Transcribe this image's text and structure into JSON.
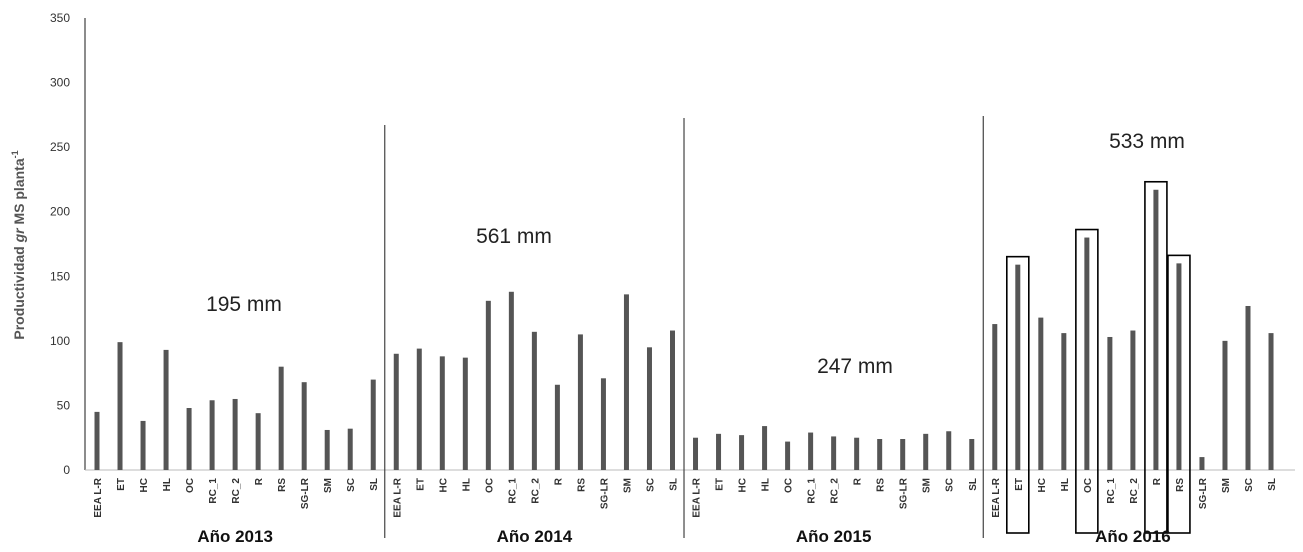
{
  "chart_data": {
    "type": "bar",
    "ylabel": "Productividad gr MS planta⁻¹",
    "ylabel_parts": [
      "Productividad ",
      "gr",
      " MS planta",
      "-1"
    ],
    "ylim": [
      0,
      350
    ],
    "yticks": [
      0,
      50,
      100,
      150,
      200,
      250,
      300,
      350
    ],
    "bar_color": "#555555",
    "highlight_color": "#000000",
    "groups": [
      {
        "label": "Año 2013",
        "rainfall": "195 mm",
        "categories": [
          "EEA L-R",
          "ET",
          "HC",
          "HL",
          "OC",
          "RC_1",
          "RC_2",
          "R",
          "RS",
          "SG-LR",
          "SM",
          "SC",
          "SL"
        ],
        "values": [
          45,
          99,
          38,
          93,
          48,
          54,
          55,
          44,
          80,
          68,
          31,
          32,
          70
        ],
        "highlighted": []
      },
      {
        "label": "Año 2014",
        "rainfall": "561 mm",
        "categories": [
          "EEA L-R",
          "ET",
          "HC",
          "HL",
          "OC",
          "RC_1",
          "RC_2",
          "R",
          "RS",
          "SG-LR",
          "SM",
          "SC",
          "SL"
        ],
        "values": [
          90,
          94,
          88,
          87,
          131,
          138,
          107,
          66,
          105,
          71,
          136,
          95,
          108
        ],
        "highlighted": []
      },
      {
        "label": "Año 2015",
        "rainfall": "247 mm",
        "categories": [
          "EEA L-R",
          "ET",
          "HC",
          "HL",
          "OC",
          "RC_1",
          "RC_2",
          "R",
          "RS",
          "SG-LR",
          "SM",
          "SC",
          "SL"
        ],
        "values": [
          25,
          28,
          27,
          34,
          22,
          29,
          26,
          25,
          24,
          24,
          28,
          30,
          24
        ],
        "highlighted": []
      },
      {
        "label": "Año 2016",
        "rainfall": "533 mm",
        "categories": [
          "EEA L-R",
          "ET",
          "HC",
          "HL",
          "OC",
          "RC_1",
          "RC_2",
          "R",
          "RS",
          "SG-LR",
          "SM",
          "SC",
          "SL"
        ],
        "values": [
          113,
          159,
          118,
          106,
          180,
          103,
          108,
          217,
          160,
          10,
          100,
          127,
          106
        ],
        "highlighted": [
          "ET",
          "OC",
          "R",
          "RS"
        ]
      }
    ]
  }
}
